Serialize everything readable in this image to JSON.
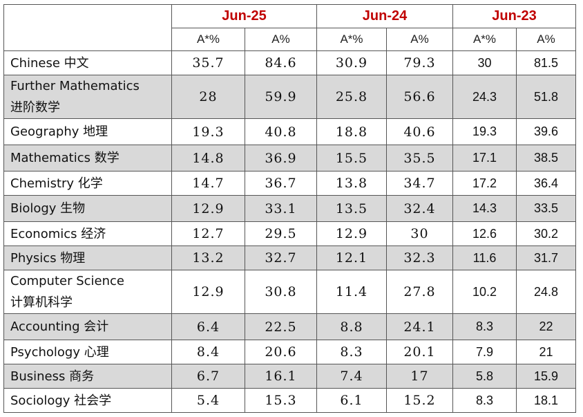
{
  "years": [
    "Jun-25",
    "Jun-24",
    "Jun-23"
  ],
  "sub_headers": [
    "A*%",
    "A%",
    "A*%",
    "A%",
    "A*%",
    "A%"
  ],
  "rows": [
    {
      "subject": [
        "Chinese 中文"
      ],
      "values": [
        "35.7",
        "84.6",
        "30.9",
        "79.3",
        "30",
        "81.5"
      ]
    },
    {
      "subject": [
        "Further Mathematics",
        "进阶数学"
      ],
      "values": [
        "28",
        "59.9",
        "25.8",
        "56.6",
        "24.3",
        "51.8"
      ]
    },
    {
      "subject": [
        "Geography 地理"
      ],
      "values": [
        "19.3",
        "40.8",
        "18.8",
        "40.6",
        "19.3",
        "39.6"
      ]
    },
    {
      "subject": [
        "Mathematics 数学"
      ],
      "values": [
        "14.8",
        "36.9",
        "15.5",
        "35.5",
        "17.1",
        "38.5"
      ]
    },
    {
      "subject": [
        "Chemistry 化学"
      ],
      "values": [
        "14.7",
        "36.7",
        "13.8",
        "34.7",
        "17.2",
        "36.4"
      ]
    },
    {
      "subject": [
        "Biology 生物"
      ],
      "values": [
        "12.9",
        "33.1",
        "13.5",
        "32.4",
        "14.3",
        "33.5"
      ]
    },
    {
      "subject": [
        "Economics 经济"
      ],
      "values": [
        "12.7",
        "29.5",
        "12.9",
        "30",
        "12.6",
        "30.2"
      ]
    },
    {
      "subject": [
        "Physics 物理"
      ],
      "values": [
        "13.2",
        "32.7",
        "12.1",
        "32.3",
        "11.6",
        "31.7"
      ]
    },
    {
      "subject": [
        "Computer Science",
        "计算机科学"
      ],
      "values": [
        "12.9",
        "30.8",
        "11.4",
        "27.8",
        "10.2",
        "24.8"
      ]
    },
    {
      "subject": [
        "Accounting 会计"
      ],
      "values": [
        "6.4",
        "22.5",
        "8.8",
        "24.1",
        "8.3",
        "22"
      ]
    },
    {
      "subject": [
        "Psychology 心理"
      ],
      "values": [
        "8.4",
        "20.6",
        "8.3",
        "20.1",
        "7.9",
        "21"
      ]
    },
    {
      "subject": [
        "Business 商务"
      ],
      "values": [
        "6.7",
        "16.1",
        "7.4",
        "17",
        "5.8",
        "15.9"
      ]
    },
    {
      "subject": [
        "Sociology 社会学"
      ],
      "values": [
        "5.4",
        "15.3",
        "6.1",
        "15.2",
        "8.3",
        "18.1"
      ]
    }
  ]
}
